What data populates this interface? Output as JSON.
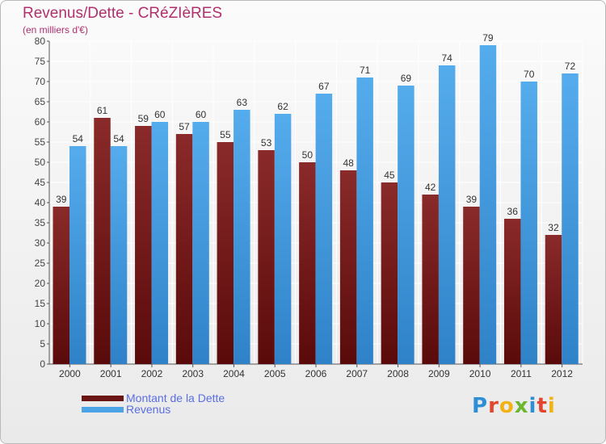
{
  "title": "Revenus/Dette - CRéZIèRES",
  "subtitle": "(en milliers d'€)",
  "colors": {
    "dette": "#7a1c1c",
    "revenus": "#4ca3e6",
    "title": "#b0306e",
    "legend_text": "#5a6ee0",
    "grid": "#ffffff"
  },
  "logo": {
    "letters": [
      {
        "ch": "P",
        "color": "#2f8fd6"
      },
      {
        "ch": "r",
        "color": "#e2462e"
      },
      {
        "ch": "o",
        "color": "#f2b214"
      },
      {
        "ch": "x",
        "color": "#6bb82e"
      },
      {
        "ch": "i",
        "color": "#2f8fd6"
      },
      {
        "ch": "t",
        "color": "#e2462e"
      },
      {
        "ch": "i",
        "color": "#f2b214"
      }
    ]
  },
  "chart_data": {
    "type": "bar",
    "categories": [
      "2000",
      "2001",
      "2002",
      "2003",
      "2004",
      "2005",
      "2006",
      "2007",
      "2008",
      "2009",
      "2010",
      "2011",
      "2012"
    ],
    "series": [
      {
        "name": "Montant de la Dette",
        "values": [
          39,
          61,
          59,
          57,
          55,
          53,
          50,
          48,
          45,
          42,
          39,
          36,
          32
        ]
      },
      {
        "name": "Revenus",
        "values": [
          54,
          54,
          60,
          60,
          63,
          62,
          67,
          71,
          69,
          74,
          79,
          70,
          72
        ]
      }
    ],
    "ylim": [
      0,
      80
    ],
    "yticks": [
      0,
      5,
      10,
      15,
      20,
      25,
      30,
      35,
      40,
      45,
      50,
      55,
      60,
      65,
      70,
      75,
      80
    ],
    "grid": true,
    "legend": "bottom-left"
  }
}
